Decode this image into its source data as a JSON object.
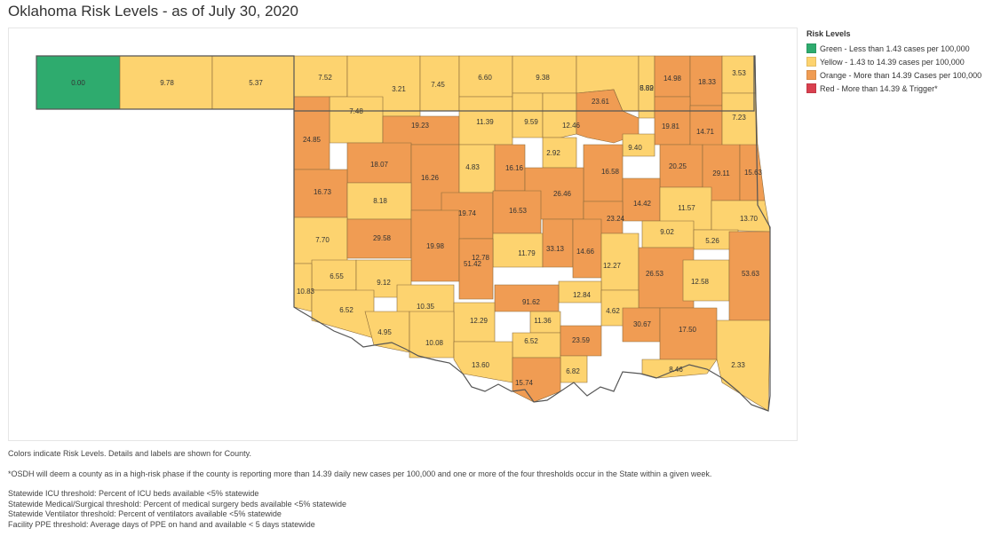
{
  "title": "Oklahoma Risk Levels - as of July 30, 2020",
  "legend": {
    "title": "Risk Levels",
    "items": [
      {
        "label": "Green - Less than 1.43 cases per 100,000",
        "color": "#2eab6e"
      },
      {
        "label": "Yellow - 1.43 to 14.39 cases per 100,000",
        "color": "#fdd36f"
      },
      {
        "label": "Orange - More than 14.39 Cases per 100,000",
        "color": "#f09c53"
      },
      {
        "label": "Red - More than 14.39 & Trigger*",
        "color": "#d9404f"
      }
    ]
  },
  "notes": {
    "colors": "Colors indicate Risk Levels.  Details and labels are shown for County.",
    "osdh": "*OSDH will deem a county as in a high-risk phase if the county is reporting more than 14.39 daily new cases per 100,000 and one or more of the four thresholds occur in the State within a given week.",
    "icu": "Statewide ICU threshold: Percent of ICU beds available <5% statewide",
    "medsurg": "Statewide Medical/Surgical threshold: Percent of medical surgery beds available <5% statewide",
    "vent": "Statewide Ventilator threshold: Percent of ventilators available <5% statewide",
    "ppe": "Facility PPE threshold: Average days of PPE on hand and available < 5 days statewide"
  },
  "counties": [
    {
      "value": "0.00",
      "level": "green"
    },
    {
      "value": "9.78",
      "level": "yellow"
    },
    {
      "value": "5.37",
      "level": "yellow"
    },
    {
      "value": "7.52",
      "level": "yellow"
    },
    {
      "value": "3.21",
      "level": "yellow"
    },
    {
      "value": "7.45",
      "level": "yellow"
    },
    {
      "value": "6.60",
      "level": "yellow"
    },
    {
      "value": "9.38",
      "level": "yellow"
    },
    {
      "value": "8.82",
      "level": "yellow"
    },
    {
      "value": "5.59",
      "level": "yellow"
    },
    {
      "value": "14.98",
      "level": "orange"
    },
    {
      "value": "18.33",
      "level": "orange"
    },
    {
      "value": "3.53",
      "level": "yellow"
    },
    {
      "value": "7.48",
      "level": "yellow"
    },
    {
      "value": "19.23",
      "level": "orange"
    },
    {
      "value": "11.39",
      "level": "yellow"
    },
    {
      "value": "9.59",
      "level": "yellow"
    },
    {
      "value": "12.46",
      "level": "yellow"
    },
    {
      "value": "23.61",
      "level": "orange"
    },
    {
      "value": "19.81",
      "level": "orange"
    },
    {
      "value": "14.71",
      "level": "orange"
    },
    {
      "value": "7.23",
      "level": "yellow"
    },
    {
      "value": "24.85",
      "level": "orange"
    },
    {
      "value": "9.40",
      "level": "yellow"
    },
    {
      "value": "2.92",
      "level": "yellow"
    },
    {
      "value": "18.07",
      "level": "orange"
    },
    {
      "value": "16.26",
      "level": "orange"
    },
    {
      "value": "4.83",
      "level": "yellow"
    },
    {
      "value": "16.16",
      "level": "orange"
    },
    {
      "value": "16.58",
      "level": "orange"
    },
    {
      "value": "20.25",
      "level": "orange"
    },
    {
      "value": "29.11",
      "level": "orange"
    },
    {
      "value": "15.63",
      "level": "orange"
    },
    {
      "value": "16.73",
      "level": "orange"
    },
    {
      "value": "8.18",
      "level": "yellow"
    },
    {
      "value": "26.46",
      "level": "orange"
    },
    {
      "value": "14.42",
      "level": "orange"
    },
    {
      "value": "11.57",
      "level": "yellow"
    },
    {
      "value": "19.74",
      "level": "orange"
    },
    {
      "value": "16.53",
      "level": "orange"
    },
    {
      "value": "23.24",
      "level": "orange"
    },
    {
      "value": "13.70",
      "level": "yellow"
    },
    {
      "value": "9.02",
      "level": "yellow"
    },
    {
      "value": "5.26",
      "level": "yellow"
    },
    {
      "value": "7.70",
      "level": "yellow"
    },
    {
      "value": "29.58",
      "level": "orange"
    },
    {
      "value": "19.98",
      "level": "orange"
    },
    {
      "value": "11.79",
      "level": "yellow"
    },
    {
      "value": "12.78",
      "level": "yellow"
    },
    {
      "value": "33.13",
      "level": "orange"
    },
    {
      "value": "14.66",
      "level": "orange"
    },
    {
      "value": "51.42",
      "level": "orange"
    },
    {
      "value": "12.27",
      "level": "yellow"
    },
    {
      "value": "6.55",
      "level": "yellow"
    },
    {
      "value": "9.12",
      "level": "yellow"
    },
    {
      "value": "26.53",
      "level": "orange"
    },
    {
      "value": "12.58",
      "level": "yellow"
    },
    {
      "value": "53.63",
      "level": "orange"
    },
    {
      "value": "10.83",
      "level": "yellow"
    },
    {
      "value": "12.84",
      "level": "yellow"
    },
    {
      "value": "91.62",
      "level": "orange"
    },
    {
      "value": "6.52",
      "level": "yellow"
    },
    {
      "value": "10.35",
      "level": "yellow"
    },
    {
      "value": "4.62",
      "level": "yellow"
    },
    {
      "value": "12.29",
      "level": "yellow"
    },
    {
      "value": "11.36",
      "level": "yellow"
    },
    {
      "value": "30.67",
      "level": "orange"
    },
    {
      "value": "17.50",
      "level": "orange"
    },
    {
      "value": "4.95",
      "level": "yellow"
    },
    {
      "value": "10.08",
      "level": "yellow"
    },
    {
      "value": "6.52",
      "level": "yellow"
    },
    {
      "value": "23.59",
      "level": "orange"
    },
    {
      "value": "2.33",
      "level": "yellow"
    },
    {
      "value": "13.60",
      "level": "yellow"
    },
    {
      "value": "6.82",
      "level": "yellow"
    },
    {
      "value": "8.46",
      "level": "yellow"
    },
    {
      "value": "15.74",
      "level": "orange"
    }
  ]
}
